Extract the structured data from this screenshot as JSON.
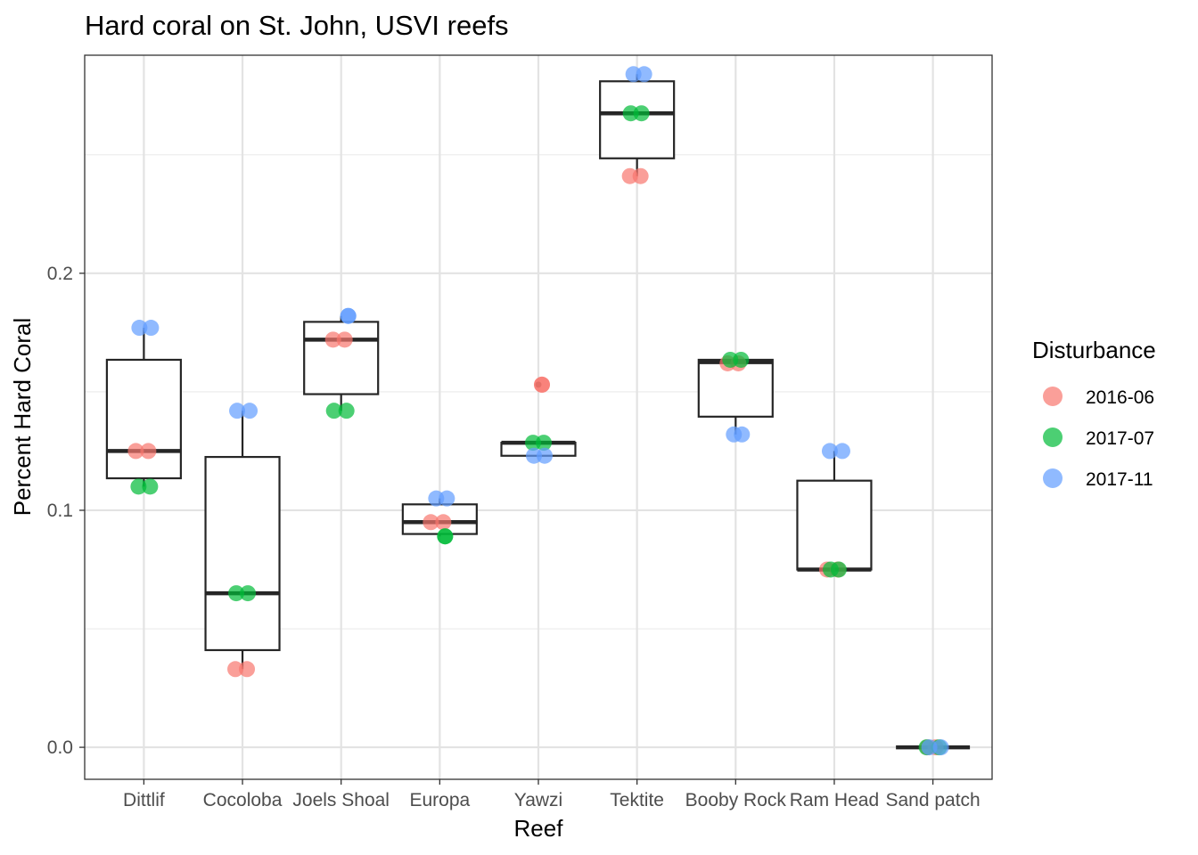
{
  "chart_data": {
    "type": "boxplot",
    "title": "Hard coral on St. John, USVI reefs",
    "xlabel": "Reef",
    "ylabel": "Percent Hard Coral",
    "ylim": [
      -0.0135,
      0.292
    ],
    "yticks": [
      0.0,
      0.1,
      0.2
    ],
    "ytick_labels": [
      "0.0",
      "0.1",
      "0.2"
    ],
    "grid": true,
    "legend": {
      "title": "Disturbance",
      "placement": "right"
    },
    "categories": [
      "Dittlif",
      "Cocoloba",
      "Joels Shoal",
      "Europa",
      "Yawzi",
      "Tektite",
      "Booby Rock",
      "Ram Head",
      "Sand patch"
    ],
    "boxes": [
      {
        "category": "Dittlif",
        "lower": 0.11,
        "q1": 0.1135,
        "median": 0.125,
        "q3": 0.1635,
        "upper": 0.177
      },
      {
        "category": "Cocoloba",
        "lower": 0.033,
        "q1": 0.041,
        "median": 0.065,
        "q3": 0.1225,
        "upper": 0.142
      },
      {
        "category": "Joels Shoal",
        "lower": 0.142,
        "q1": 0.149,
        "median": 0.172,
        "q3": 0.1795,
        "upper": 0.182
      },
      {
        "category": "Europa",
        "lower": 0.089,
        "q1": 0.09,
        "median": 0.095,
        "q3": 0.1025,
        "upper": 0.105
      },
      {
        "category": "Yawzi",
        "lower": 0.123,
        "q1": 0.123,
        "median": 0.1285,
        "q3": 0.1285,
        "upper": 0.1285,
        "outliers": [
          0.153
        ]
      },
      {
        "category": "Tektite",
        "lower": 0.241,
        "q1": 0.2485,
        "median": 0.2675,
        "q3": 0.281,
        "upper": 0.284
      },
      {
        "category": "Booby Rock",
        "lower": 0.132,
        "q1": 0.1395,
        "median": 0.1625,
        "q3": 0.1635,
        "upper": 0.164
      },
      {
        "category": "Ram Head",
        "lower": 0.075,
        "q1": 0.075,
        "median": 0.075,
        "q3": 0.1125,
        "upper": 0.125
      },
      {
        "category": "Sand patch",
        "lower": 0.0,
        "q1": 0.0,
        "median": 0.0,
        "q3": 0.0,
        "upper": 0.0
      }
    ],
    "series": [
      {
        "name": "2016-06",
        "color": "#F8766D",
        "values": [
          0.125,
          0.033,
          0.172,
          0.095,
          0.153,
          0.241,
          0.162,
          0.075,
          0.0
        ]
      },
      {
        "name": "2017-07",
        "color": "#00BA38",
        "values": [
          0.11,
          0.065,
          0.142,
          0.089,
          0.1285,
          0.2675,
          0.1635,
          0.075,
          0.0
        ]
      },
      {
        "name": "2017-11",
        "color": "#619CFF",
        "values": [
          0.177,
          0.142,
          0.182,
          0.105,
          0.123,
          0.284,
          0.132,
          0.125,
          0.0
        ]
      }
    ]
  }
}
